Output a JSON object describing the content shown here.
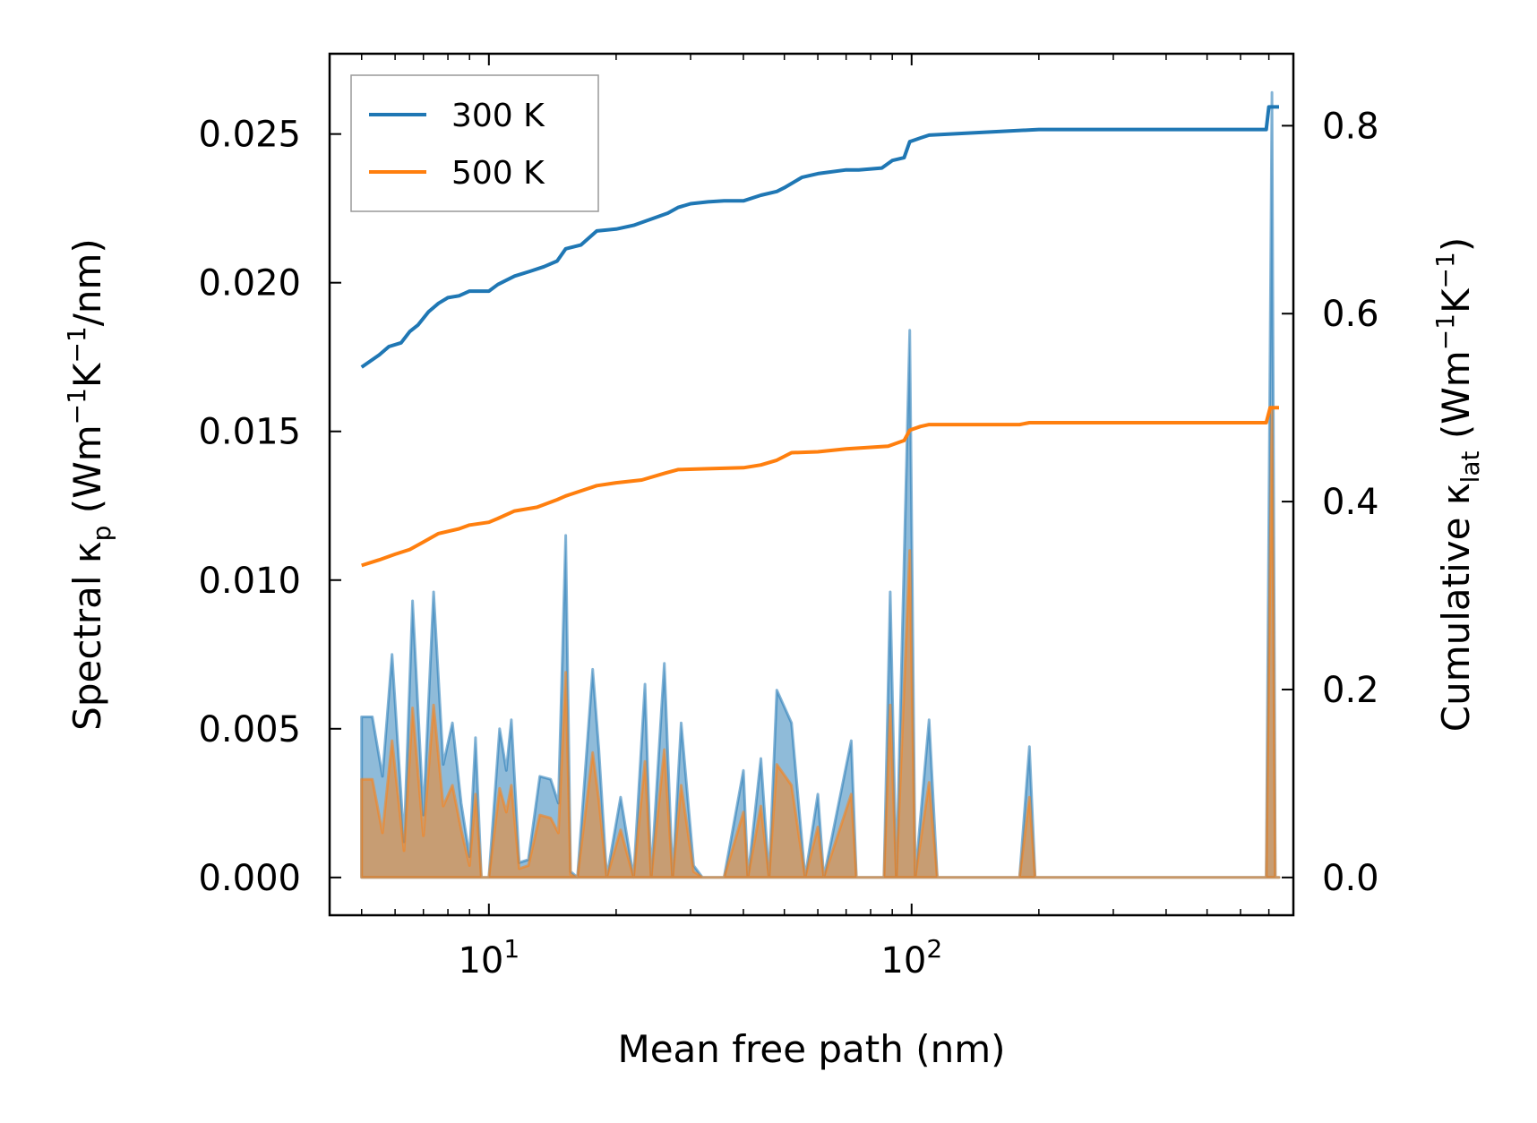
{
  "chart_data": {
    "type": "line",
    "xscale": "log",
    "xlim": [
      4.2,
      800
    ],
    "ylim_left": [
      -0.00127,
      0.0277
    ],
    "ylim_right": [
      -0.0402,
      0.8766
    ],
    "xlabel": "Mean free path (nm)",
    "ylabel_left": {
      "base": "Spectral κ",
      "sub": "p",
      "units_open": " (Wm",
      "sup1": "−1",
      "mid": "K",
      "sup2": "−1",
      "tail": "/nm)"
    },
    "ylabel_right": {
      "base": "Cumulative κ",
      "sub": "lat",
      "units_open": " (Wm",
      "sup1": "−1",
      "mid": "K",
      "sup2": "−1",
      "tail": ")"
    },
    "x_ticks": [
      {
        "value": 10,
        "base": "10",
        "exp": "1"
      },
      {
        "value": 100,
        "base": "10",
        "exp": "2"
      }
    ],
    "y_ticks_left": [
      {
        "value": 0.0,
        "label": "0.000"
      },
      {
        "value": 0.005,
        "label": "0.005"
      },
      {
        "value": 0.01,
        "label": "0.010"
      },
      {
        "value": 0.015,
        "label": "0.015"
      },
      {
        "value": 0.02,
        "label": "0.020"
      },
      {
        "value": 0.025,
        "label": "0.025"
      }
    ],
    "y_ticks_right": [
      {
        "value": 0.0,
        "label": "0.0"
      },
      {
        "value": 0.2,
        "label": "0.2"
      },
      {
        "value": 0.4,
        "label": "0.4"
      },
      {
        "value": 0.6,
        "label": "0.6"
      },
      {
        "value": 0.8,
        "label": "0.8"
      }
    ],
    "legend": {
      "position": "upper-left",
      "entries": [
        "300 K",
        "500 K"
      ]
    },
    "series": [
      {
        "name": "300 K",
        "color": "#1f77b4",
        "cumulative_axis": "right",
        "cumulative": [
          [
            5.0,
            0.543
          ],
          [
            5.5,
            0.556
          ],
          [
            5.8,
            0.565
          ],
          [
            6.2,
            0.569
          ],
          [
            6.5,
            0.581
          ],
          [
            6.8,
            0.588
          ],
          [
            7.2,
            0.602
          ],
          [
            7.6,
            0.611
          ],
          [
            8.0,
            0.617
          ],
          [
            8.5,
            0.619
          ],
          [
            9.0,
            0.624
          ],
          [
            10.0,
            0.624
          ],
          [
            10.5,
            0.631
          ],
          [
            11.5,
            0.64
          ],
          [
            12.5,
            0.645
          ],
          [
            13.5,
            0.65
          ],
          [
            14.5,
            0.656
          ],
          [
            15.2,
            0.669
          ],
          [
            16.5,
            0.673
          ],
          [
            18.0,
            0.688
          ],
          [
            20.0,
            0.69
          ],
          [
            22.0,
            0.694
          ],
          [
            24.0,
            0.7
          ],
          [
            26.5,
            0.707
          ],
          [
            28.0,
            0.713
          ],
          [
            30.0,
            0.717
          ],
          [
            33.0,
            0.719
          ],
          [
            36.0,
            0.72
          ],
          [
            40.0,
            0.72
          ],
          [
            44.0,
            0.726
          ],
          [
            48.0,
            0.73
          ],
          [
            50.0,
            0.734
          ],
          [
            55.0,
            0.745
          ],
          [
            60.0,
            0.749
          ],
          [
            70.0,
            0.753
          ],
          [
            75.0,
            0.753
          ],
          [
            85.0,
            0.755
          ],
          [
            90.0,
            0.763
          ],
          [
            96.0,
            0.766
          ],
          [
            99.0,
            0.783
          ],
          [
            105.0,
            0.787
          ],
          [
            110.0,
            0.79
          ],
          [
            200.0,
            0.796
          ],
          [
            690.0,
            0.796
          ],
          [
            700.0,
            0.82
          ],
          [
            740.0,
            0.82
          ]
        ],
        "spectral_axis": "left",
        "spectral": [
          [
            5.0,
            0.0054
          ],
          [
            5.3,
            0.0054
          ],
          [
            5.6,
            0.0034
          ],
          [
            5.9,
            0.0075
          ],
          [
            6.3,
            0.0012
          ],
          [
            6.6,
            0.0093
          ],
          [
            7.0,
            0.0021
          ],
          [
            7.4,
            0.0096
          ],
          [
            7.8,
            0.0038
          ],
          [
            8.2,
            0.0052
          ],
          [
            8.6,
            0.0025
          ],
          [
            9.0,
            0.0007
          ],
          [
            9.3,
            0.0047
          ],
          [
            9.6,
            0.0
          ],
          [
            10.0,
            0.0
          ],
          [
            10.6,
            0.005
          ],
          [
            11.0,
            0.0036
          ],
          [
            11.3,
            0.0053
          ],
          [
            11.8,
            0.0005
          ],
          [
            12.4,
            0.0006
          ],
          [
            13.2,
            0.0034
          ],
          [
            14.0,
            0.0033
          ],
          [
            14.6,
            0.0025
          ],
          [
            15.2,
            0.0115
          ],
          [
            15.6,
            0.0002
          ],
          [
            16.2,
            0.0
          ],
          [
            17.6,
            0.007
          ],
          [
            18.2,
            0.0043
          ],
          [
            19.0,
            0.0
          ],
          [
            20.5,
            0.0027
          ],
          [
            22.0,
            0.0
          ],
          [
            23.4,
            0.0065
          ],
          [
            24.2,
            0.0
          ],
          [
            26.0,
            0.0072
          ],
          [
            27.2,
            0.0
          ],
          [
            28.5,
            0.0052
          ],
          [
            30.5,
            0.0004
          ],
          [
            32.0,
            0.0
          ],
          [
            36.0,
            0.0
          ],
          [
            40.0,
            0.0036
          ],
          [
            41.0,
            0.0
          ],
          [
            44.0,
            0.004
          ],
          [
            46.0,
            0.0
          ],
          [
            48.0,
            0.0063
          ],
          [
            52.0,
            0.0052
          ],
          [
            56.0,
            0.0
          ],
          [
            60.0,
            0.0028
          ],
          [
            62.0,
            0.0
          ],
          [
            72.0,
            0.0046
          ],
          [
            74.0,
            0.0
          ],
          [
            86.0,
            0.0
          ],
          [
            89.0,
            0.0096
          ],
          [
            92.0,
            0.0
          ],
          [
            99.0,
            0.0184
          ],
          [
            102.0,
            0.0
          ],
          [
            110.0,
            0.0053
          ],
          [
            115.0,
            0.0
          ],
          [
            180.0,
            0.0
          ],
          [
            190.0,
            0.0044
          ],
          [
            196.0,
            0.0
          ],
          [
            690.0,
            0.0
          ],
          [
            712.0,
            0.0264
          ],
          [
            725.0,
            0.0
          ],
          [
            740.0,
            0.0
          ]
        ]
      },
      {
        "name": "500 K",
        "color": "#ff7f0e",
        "cumulative_axis": "right",
        "cumulative": [
          [
            5.0,
            0.332
          ],
          [
            5.5,
            0.338
          ],
          [
            6.0,
            0.344
          ],
          [
            6.5,
            0.349
          ],
          [
            7.0,
            0.357
          ],
          [
            7.6,
            0.366
          ],
          [
            8.5,
            0.371
          ],
          [
            9.0,
            0.375
          ],
          [
            10.0,
            0.378
          ],
          [
            10.5,
            0.382
          ],
          [
            11.5,
            0.39
          ],
          [
            13.0,
            0.394
          ],
          [
            14.5,
            0.402
          ],
          [
            15.2,
            0.406
          ],
          [
            18.0,
            0.417
          ],
          [
            20.0,
            0.42
          ],
          [
            23.0,
            0.423
          ],
          [
            26.0,
            0.43
          ],
          [
            28.0,
            0.434
          ],
          [
            33.0,
            0.435
          ],
          [
            40.0,
            0.436
          ],
          [
            44.0,
            0.439
          ],
          [
            48.0,
            0.444
          ],
          [
            52.0,
            0.452
          ],
          [
            60.0,
            0.453
          ],
          [
            70.0,
            0.456
          ],
          [
            88.0,
            0.459
          ],
          [
            96.0,
            0.465
          ],
          [
            99.0,
            0.476
          ],
          [
            105.0,
            0.48
          ],
          [
            110.0,
            0.482
          ],
          [
            180.0,
            0.482
          ],
          [
            190.0,
            0.484
          ],
          [
            690.0,
            0.484
          ],
          [
            705.0,
            0.5
          ],
          [
            740.0,
            0.5
          ]
        ],
        "spectral_axis": "left",
        "spectral": [
          [
            5.0,
            0.0033
          ],
          [
            5.3,
            0.0033
          ],
          [
            5.6,
            0.0015
          ],
          [
            5.9,
            0.0046
          ],
          [
            6.3,
            0.0009
          ],
          [
            6.6,
            0.0057
          ],
          [
            7.0,
            0.0014
          ],
          [
            7.4,
            0.0058
          ],
          [
            7.8,
            0.0024
          ],
          [
            8.2,
            0.0031
          ],
          [
            8.6,
            0.0016
          ],
          [
            9.0,
            0.0004
          ],
          [
            9.3,
            0.0028
          ],
          [
            9.6,
            0.0
          ],
          [
            10.0,
            0.0
          ],
          [
            10.6,
            0.003
          ],
          [
            11.0,
            0.0022
          ],
          [
            11.3,
            0.0031
          ],
          [
            11.8,
            0.0003
          ],
          [
            12.4,
            0.0004
          ],
          [
            13.2,
            0.0021
          ],
          [
            14.0,
            0.002
          ],
          [
            14.6,
            0.0015
          ],
          [
            15.2,
            0.0069
          ],
          [
            15.6,
            0.0001
          ],
          [
            16.2,
            0.0
          ],
          [
            17.6,
            0.0042
          ],
          [
            18.2,
            0.0026
          ],
          [
            19.0,
            0.0
          ],
          [
            20.5,
            0.0016
          ],
          [
            22.0,
            0.0
          ],
          [
            23.4,
            0.0039
          ],
          [
            24.2,
            0.0
          ],
          [
            26.0,
            0.0043
          ],
          [
            27.2,
            0.0
          ],
          [
            28.5,
            0.0031
          ],
          [
            30.5,
            0.0002
          ],
          [
            32.0,
            0.0
          ],
          [
            36.0,
            0.0
          ],
          [
            40.0,
            0.0022
          ],
          [
            41.0,
            0.0
          ],
          [
            44.0,
            0.0024
          ],
          [
            46.0,
            0.0
          ],
          [
            48.0,
            0.0038
          ],
          [
            52.0,
            0.0031
          ],
          [
            56.0,
            0.0
          ],
          [
            60.0,
            0.0017
          ],
          [
            62.0,
            0.0
          ],
          [
            72.0,
            0.0028
          ],
          [
            74.0,
            0.0
          ],
          [
            86.0,
            0.0
          ],
          [
            89.0,
            0.0058
          ],
          [
            92.0,
            0.0
          ],
          [
            99.0,
            0.011
          ],
          [
            102.0,
            0.0
          ],
          [
            110.0,
            0.0032
          ],
          [
            115.0,
            0.0
          ],
          [
            180.0,
            0.0
          ],
          [
            190.0,
            0.0027
          ],
          [
            196.0,
            0.0
          ],
          [
            690.0,
            0.0
          ],
          [
            712.0,
            0.0158
          ],
          [
            725.0,
            0.0
          ],
          [
            740.0,
            0.0
          ]
        ]
      }
    ]
  }
}
